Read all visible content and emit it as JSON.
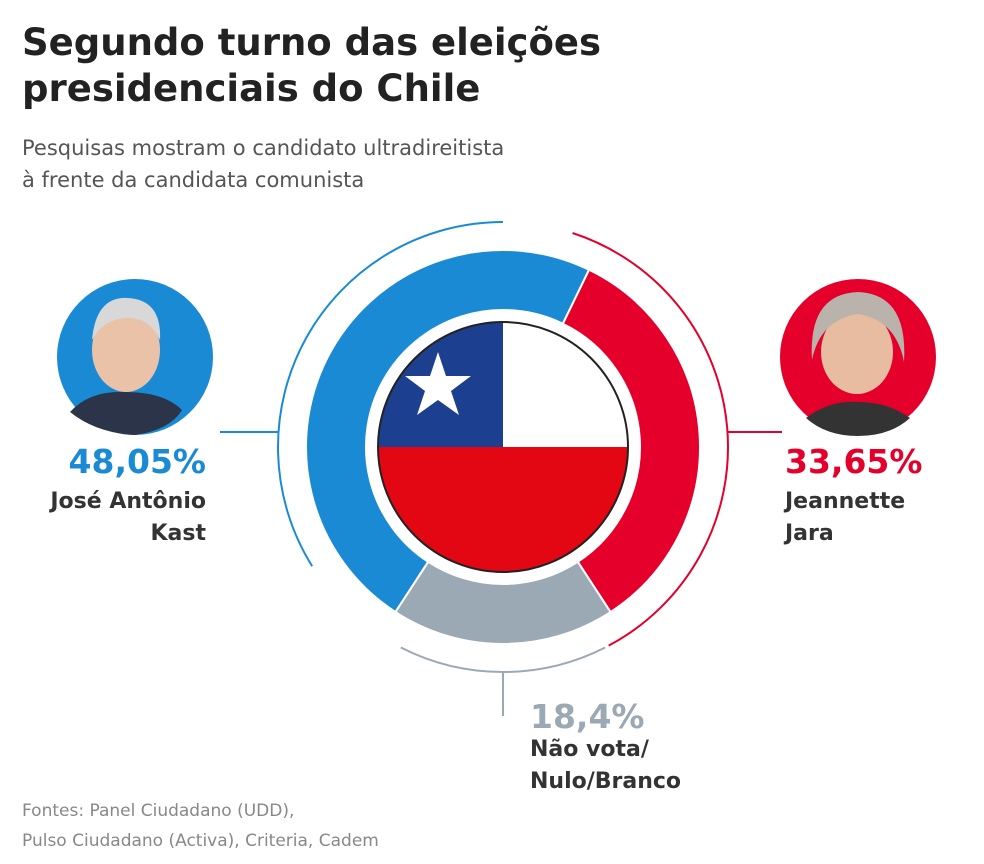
{
  "chart_data": {
    "type": "donut",
    "title": "Segundo turno das eleições\npresidenciais do Chile",
    "subtitle": "Pesquisas mostram o candidato ultradireitista\nà frente da candidata comunista",
    "categories": [
      "José Antônio\nKast",
      "Jeannette\nJara",
      "Não vota/\nNulo/Branco"
    ],
    "values": [
      48.05,
      33.65,
      18.4
    ],
    "value_labels": [
      "48,05%",
      "33,65%",
      "18,4%"
    ],
    "colors": [
      "#1a8ad4",
      "#e4002b",
      "#9aa9b4"
    ],
    "source": "Fontes: Panel Ciudadano (UDD),\nPulso Ciudadano (Activa), Criteria, Cadem"
  }
}
